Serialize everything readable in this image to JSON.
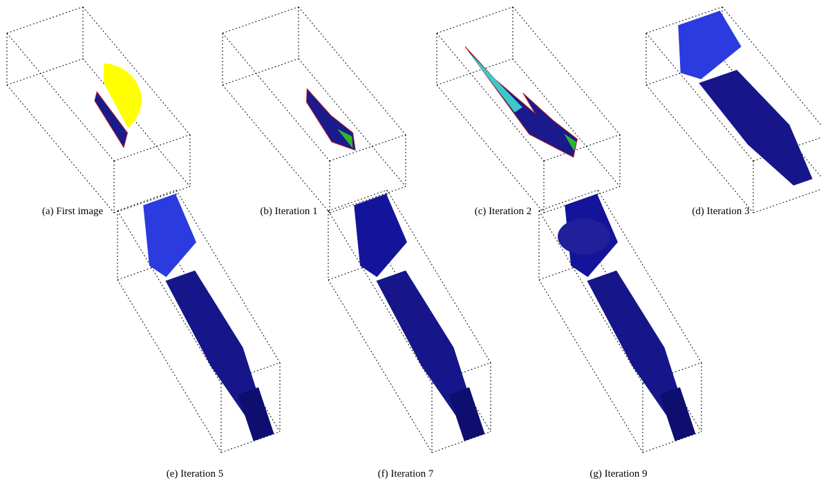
{
  "figure": {
    "subfigures": [
      {
        "label": "(a)",
        "caption": "First image"
      },
      {
        "label": "(b)",
        "caption": "Iteration 1"
      },
      {
        "label": "(c)",
        "caption": "Iteration 2"
      },
      {
        "label": "(d)",
        "caption": "Iteration 3"
      },
      {
        "label": "(e)",
        "caption": "Iteration 5"
      },
      {
        "label": "(f)",
        "caption": "Iteration 7"
      },
      {
        "label": "(g)",
        "caption": "Iteration 9"
      }
    ]
  }
}
